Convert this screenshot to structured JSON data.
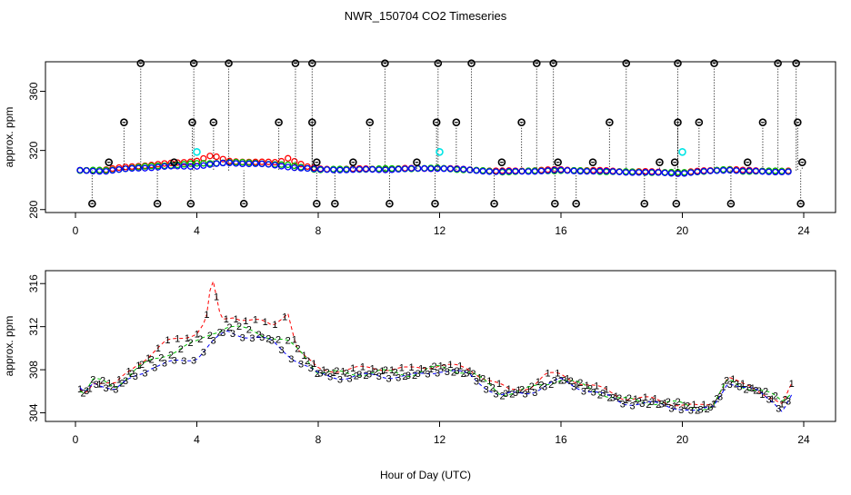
{
  "title": "NWR_150704  CO2 Timeseries",
  "xlabel": "Hour of Day (UTC)",
  "colors": {
    "series1": "#ff0000",
    "series2": "#00c000",
    "series3": "#0000ff",
    "outlier": "#000000",
    "flag": "#00e5e5"
  },
  "chart_data": [
    {
      "type": "scatter",
      "panel": "top",
      "ylabel": "approx. ppm",
      "xlim": [
        0,
        24
      ],
      "ylim": [
        278,
        380
      ],
      "xticks": [
        "0",
        "4",
        "8",
        "12",
        "16",
        "20",
        "24"
      ],
      "yticks": [
        "280",
        "320",
        "360"
      ],
      "series": [
        {
          "name": "1",
          "color": "#ff0000",
          "keypoints": [
            [
              0,
              306.5
            ],
            [
              1,
              307
            ],
            [
              2,
              309.5
            ],
            [
              3,
              311
            ],
            [
              4,
              313
            ],
            [
              4.5,
              316.5
            ],
            [
              5,
              313
            ],
            [
              6,
              312
            ],
            [
              6.7,
              312
            ],
            [
              7.0,
              315
            ],
            [
              7.6,
              309
            ],
            [
              8,
              307.5
            ],
            [
              10,
              307.5
            ],
            [
              12,
              308
            ],
            [
              14,
              306
            ],
            [
              16,
              307
            ],
            [
              18,
              306
            ],
            [
              20,
              305
            ],
            [
              21.5,
              307.5
            ],
            [
              22,
              306.5
            ],
            [
              23.5,
              306
            ]
          ]
        },
        {
          "name": "2",
          "color": "#00c000",
          "keypoints": [
            [
              0,
              306.5
            ],
            [
              1,
              306.5
            ],
            [
              2,
              308.5
            ],
            [
              3,
              310
            ],
            [
              4,
              311
            ],
            [
              5,
              312
            ],
            [
              6,
              311.5
            ],
            [
              7,
              310
            ],
            [
              8,
              307
            ],
            [
              10,
              307.5
            ],
            [
              12,
              308
            ],
            [
              14,
              305.5
            ],
            [
              16,
              306.5
            ],
            [
              18,
              305.5
            ],
            [
              20,
              305
            ],
            [
              21.5,
              307
            ],
            [
              22,
              306
            ],
            [
              23.5,
              306
            ]
          ]
        },
        {
          "name": "3",
          "color": "#0000ff",
          "keypoints": [
            [
              0,
              306.5
            ],
            [
              1,
              306
            ],
            [
              2,
              308
            ],
            [
              3,
              309
            ],
            [
              4,
              309.5
            ],
            [
              5,
              311.5
            ],
            [
              6,
              311
            ],
            [
              7,
              309
            ],
            [
              8,
              307
            ],
            [
              10,
              307
            ],
            [
              12,
              308
            ],
            [
              14,
              305.5
            ],
            [
              16,
              306.5
            ],
            [
              18,
              305.5
            ],
            [
              20,
              304.5
            ],
            [
              21.5,
              307
            ],
            [
              22,
              306
            ],
            [
              23.5,
              305.5
            ]
          ]
        }
      ],
      "outliers_high": [
        2.15,
        3.9,
        5.05,
        7.25,
        7.8,
        10.2,
        11.95,
        13.05,
        15.2,
        15.75,
        18.15,
        19.85,
        21.05,
        23.15,
        23.75
      ],
      "outliers_mid": [
        1.6,
        3.85,
        4.55,
        6.7,
        7.8,
        9.7,
        11.9,
        12.55,
        14.7,
        17.6,
        19.85,
        20.55,
        22.65,
        23.8
      ],
      "outliers_low": [
        0.55,
        2.7,
        3.8,
        5.55,
        7.95,
        8.55,
        10.35,
        11.85,
        13.8,
        15.8,
        16.5,
        18.75,
        19.8,
        21.6,
        23.9
      ],
      "outliers_near": [
        1.1,
        3.25,
        7.95,
        9.15,
        11.25,
        14.05,
        15.9,
        17.05,
        19.25,
        19.75,
        22.15,
        23.95
      ],
      "flags": [
        [
          4.0,
          319
        ],
        [
          12.0,
          319
        ],
        [
          20.0,
          319
        ]
      ]
    },
    {
      "type": "scatter",
      "panel": "bottom",
      "ylabel": "approx. ppm",
      "xlim": [
        0,
        24
      ],
      "ylim": [
        303.2,
        317.2
      ],
      "xticks": [
        "0",
        "4",
        "8",
        "12",
        "16",
        "20",
        "24"
      ],
      "yticks": [
        "304",
        "308",
        "312",
        "316"
      ],
      "markers": [
        "1",
        "2",
        "3"
      ],
      "series": [
        {
          "name": "1",
          "color": "#ff0000",
          "keypoints": [
            [
              0,
              306.5
            ],
            [
              0.3,
              305.8
            ],
            [
              0.6,
              307
            ],
            [
              1,
              306.8
            ],
            [
              1.3,
              306.5
            ],
            [
              2,
              308.5
            ],
            [
              2.5,
              309.5
            ],
            [
              3,
              310.5
            ],
            [
              3.5,
              311
            ],
            [
              4,
              311.5
            ],
            [
              4.3,
              312.5
            ],
            [
              4.5,
              316.5
            ],
            [
              4.8,
              312.5
            ],
            [
              5.2,
              313
            ],
            [
              6,
              312.5
            ],
            [
              6.5,
              312
            ],
            [
              7.0,
              313.5
            ],
            [
              7.3,
              310
            ],
            [
              7.6,
              309
            ],
            [
              8,
              308
            ],
            [
              9,
              308
            ],
            [
              10,
              308.2
            ],
            [
              11,
              308
            ],
            [
              12,
              308.5
            ],
            [
              13,
              308
            ],
            [
              13.7,
              307
            ],
            [
              14.3,
              306
            ],
            [
              15,
              306.5
            ],
            [
              15.5,
              307.5
            ],
            [
              16,
              307.5
            ],
            [
              17,
              306.5
            ],
            [
              18,
              305.5
            ],
            [
              19,
              305.2
            ],
            [
              20,
              304.8
            ],
            [
              20.5,
              304.5
            ],
            [
              21,
              304.8
            ],
            [
              21.5,
              307.5
            ],
            [
              22,
              306.5
            ],
            [
              22.5,
              306
            ],
            [
              23,
              305.5
            ],
            [
              23.3,
              304.8
            ],
            [
              23.6,
              306.5
            ]
          ]
        },
        {
          "name": "2",
          "color": "#00c000",
          "keypoints": [
            [
              0,
              306.5
            ],
            [
              0.3,
              305.8
            ],
            [
              0.6,
              307
            ],
            [
              1,
              306.8
            ],
            [
              1.3,
              306.5
            ],
            [
              2,
              308
            ],
            [
              2.5,
              308.8
            ],
            [
              3,
              309.5
            ],
            [
              3.5,
              310
            ],
            [
              4,
              310.5
            ],
            [
              4.5,
              311.5
            ],
            [
              5,
              312
            ],
            [
              6,
              311.5
            ],
            [
              6.5,
              311
            ],
            [
              7.0,
              310.5
            ],
            [
              7.5,
              309.5
            ],
            [
              8,
              307.8
            ],
            [
              9,
              307.6
            ],
            [
              10,
              307.8
            ],
            [
              11,
              307.6
            ],
            [
              12,
              308.2
            ],
            [
              13,
              307.8
            ],
            [
              14,
              305.8
            ],
            [
              15,
              306.2
            ],
            [
              16,
              307.2
            ],
            [
              17,
              306.2
            ],
            [
              18,
              305.2
            ],
            [
              19,
              305
            ],
            [
              20,
              304.8
            ],
            [
              20.5,
              304.5
            ],
            [
              21,
              304.5
            ],
            [
              21.5,
              307
            ],
            [
              22,
              306.5
            ],
            [
              22.5,
              306.2
            ],
            [
              23,
              305.5
            ],
            [
              23.3,
              305
            ],
            [
              23.6,
              306
            ]
          ]
        },
        {
          "name": "3",
          "color": "#0000ff",
          "keypoints": [
            [
              0,
              306.5
            ],
            [
              0.3,
              305.8
            ],
            [
              0.6,
              307
            ],
            [
              1,
              306.5
            ],
            [
              1.3,
              306
            ],
            [
              2,
              307.5
            ],
            [
              2.5,
              308.3
            ],
            [
              3,
              308.5
            ],
            [
              3.5,
              308.8
            ],
            [
              4,
              309.2
            ],
            [
              4.5,
              310.5
            ],
            [
              5,
              311.5
            ],
            [
              6,
              311
            ],
            [
              6.5,
              310.5
            ],
            [
              7.0,
              309.5
            ],
            [
              7.5,
              308.5
            ],
            [
              8,
              307.5
            ],
            [
              9,
              307.3
            ],
            [
              10,
              307.5
            ],
            [
              11,
              307.3
            ],
            [
              12,
              308
            ],
            [
              13,
              307.5
            ],
            [
              14,
              305.5
            ],
            [
              15,
              306
            ],
            [
              16,
              307
            ],
            [
              17,
              306
            ],
            [
              18,
              305
            ],
            [
              19,
              304.8
            ],
            [
              20,
              304.5
            ],
            [
              20.5,
              304
            ],
            [
              21,
              304.5
            ],
            [
              21.5,
              307
            ],
            [
              22,
              306.2
            ],
            [
              22.5,
              306
            ],
            [
              23,
              305.2
            ],
            [
              23.3,
              304.2
            ],
            [
              23.6,
              305.5
            ]
          ]
        }
      ]
    }
  ]
}
